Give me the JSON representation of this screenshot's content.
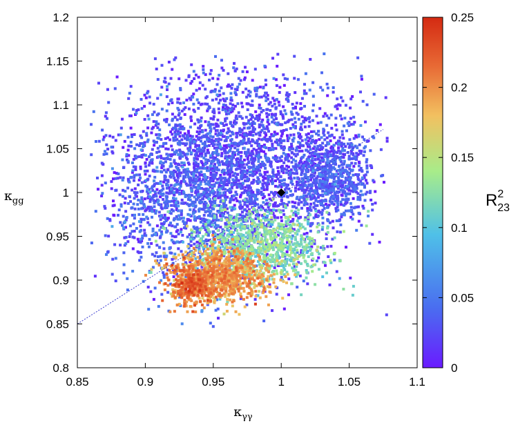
{
  "chart_data": {
    "type": "scatter",
    "title": "",
    "xlabel": "κ",
    "xlabel_sub": "γγ",
    "ylabel": "κ",
    "ylabel_sub": "gg",
    "xlim": [
      0.85,
      1.1
    ],
    "ylim": [
      0.8,
      1.2
    ],
    "x_ticks": [
      "0.85",
      "0.9",
      "0.95",
      "1",
      "1.05",
      "1.1"
    ],
    "y_ticks": [
      "0.8",
      "0.85",
      "0.9",
      "0.95",
      "1",
      "1.05",
      "1.1",
      "1.15",
      "1.2"
    ],
    "grid": false,
    "colorbar": {
      "label": "R",
      "label_sup": "2",
      "label_sub": "23",
      "range": [
        0,
        0.25
      ],
      "ticks": [
        "0",
        "0.05",
        "0.1",
        "0.15",
        "0.2",
        "0.25"
      ],
      "colormap": [
        "#6a1bff",
        "#4a6df0",
        "#4fc0e8",
        "#a8ec8a",
        "#f2c060",
        "#e86a35",
        "#d42a12"
      ]
    },
    "reference_point": {
      "x": 1.0,
      "y": 1.0,
      "marker": "diamond",
      "color": "#000000"
    },
    "reference_line": {
      "x": [
        0.85,
        1.075
      ],
      "y": [
        0.85,
        1.072
      ],
      "style": "dotted",
      "color": "#3a3ad0"
    },
    "series": [
      {
        "type": "scatter-cloud",
        "description_regions": [
          {
            "x": 0.97,
            "y": 1.03,
            "sx": 0.045,
            "sy": 0.055,
            "r2": 0.02,
            "count": 2600
          },
          {
            "x": 0.93,
            "y": 0.99,
            "sx": 0.03,
            "sy": 0.05,
            "r2": 0.04,
            "count": 900
          },
          {
            "x": 1.035,
            "y": 1.02,
            "sx": 0.015,
            "sy": 0.025,
            "r2": 0.03,
            "count": 700
          },
          {
            "x": 0.985,
            "y": 0.94,
            "sx": 0.025,
            "sy": 0.02,
            "r2": 0.12,
            "count": 900
          },
          {
            "x": 0.955,
            "y": 0.905,
            "sx": 0.018,
            "sy": 0.015,
            "r2": 0.19,
            "count": 900
          },
          {
            "x": 0.935,
            "y": 0.895,
            "sx": 0.008,
            "sy": 0.01,
            "r2": 0.21,
            "count": 300
          }
        ]
      }
    ]
  }
}
